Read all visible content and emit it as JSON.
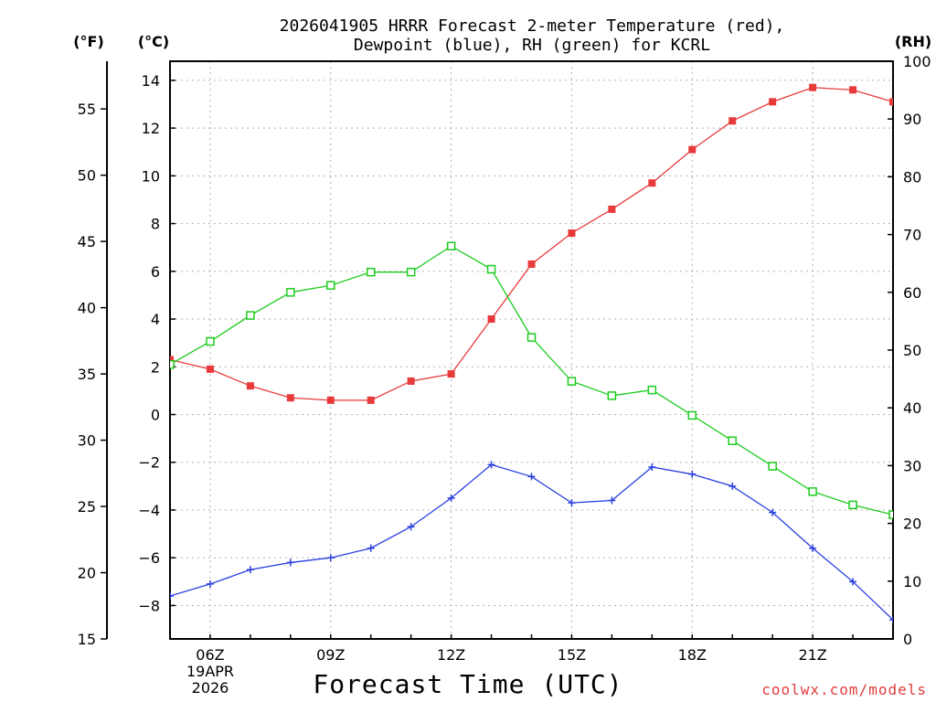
{
  "title_line1": "2026041905 HRRR Forecast 2-meter Temperature (red),",
  "title_line2": "Dewpoint (blue), RH (green) for KCRL",
  "unit_f": "(°F)",
  "unit_c": "(°C)",
  "unit_rh": "(RH)",
  "xlabel": "Forecast Time (UTC)",
  "credit": "coolwx.com/models",
  "date_line1": "19APR",
  "date_line2": "2026",
  "colors": {
    "temperature": "#e83a3a",
    "dewpoint": "#2a3fe0",
    "rh": "#1fcc1f",
    "grid": "#b0b0b0"
  },
  "chart_data": {
    "type": "line",
    "title": "2026041905 HRRR Forecast 2-meter Temperature (red), Dewpoint (blue), RH (green) for KCRL",
    "xlabel": "Forecast Time (UTC)",
    "x_hours": [
      5,
      6,
      7,
      8,
      9,
      10,
      11,
      12,
      13,
      14,
      15,
      16,
      17,
      18,
      19,
      20,
      21,
      22,
      23
    ],
    "x_tick_labels": [
      {
        "hour": 6,
        "label": "06Z"
      },
      {
        "hour": 9,
        "label": "09Z"
      },
      {
        "hour": 12,
        "label": "12Z"
      },
      {
        "hour": 15,
        "label": "15Z"
      },
      {
        "hour": 18,
        "label": "18Z"
      },
      {
        "hour": 21,
        "label": "21Z"
      }
    ],
    "xlim": [
      5,
      23
    ],
    "ylim_c": [
      -9.4,
      14.8
    ],
    "ylim_f": [
      15,
      58.6
    ],
    "ylim_rh": [
      0,
      100
    ],
    "yticks_c": [
      -8,
      -6,
      -4,
      -2,
      0,
      2,
      4,
      6,
      8,
      10,
      12,
      14
    ],
    "yticks_f": [
      15,
      20,
      25,
      30,
      35,
      40,
      45,
      50,
      55
    ],
    "yticks_rh": [
      0,
      10,
      20,
      30,
      40,
      50,
      60,
      70,
      80,
      90,
      100
    ],
    "series": [
      {
        "name": "Temperature (C)",
        "axis": "c",
        "color": "#e83a3a",
        "marker": "filled-square",
        "values": [
          2.3,
          1.9,
          1.2,
          0.7,
          0.6,
          0.6,
          1.4,
          1.7,
          4.0,
          6.3,
          7.6,
          8.6,
          9.7,
          11.1,
          12.3,
          13.1,
          13.7,
          13.6,
          13.1
        ]
      },
      {
        "name": "Dewpoint (C)",
        "axis": "c",
        "color": "#2a3fe0",
        "marker": "plus",
        "values": [
          -7.6,
          -7.1,
          -6.5,
          -6.2,
          -6.0,
          -5.6,
          -4.7,
          -3.5,
          -2.1,
          -2.6,
          -3.7,
          -3.6,
          -2.2,
          -2.5,
          -3.0,
          -4.1,
          -5.6,
          -7.0,
          -8.6
        ]
      },
      {
        "name": "RH (%)",
        "axis": "rh",
        "color": "#1fcc1f",
        "marker": "open-square",
        "values": [
          47.5,
          51.5,
          56.0,
          60.0,
          61.2,
          63.5,
          63.5,
          68.0,
          64.0,
          52.2,
          44.6,
          42.1,
          43.1,
          38.7,
          34.3,
          29.9,
          25.5,
          23.2,
          21.5
        ]
      }
    ]
  }
}
